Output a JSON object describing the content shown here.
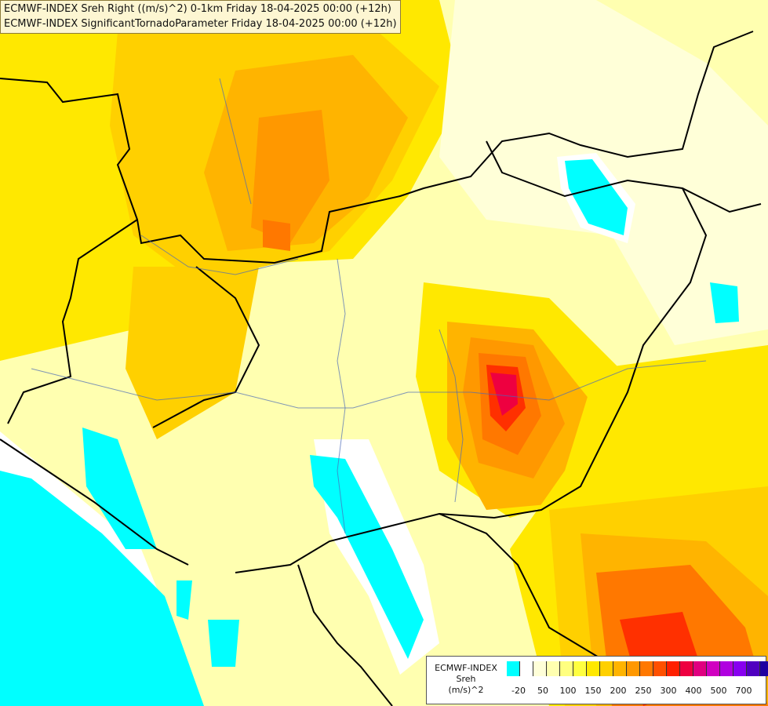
{
  "title_lines": [
    "ECMWF-INDEX Sreh Right ((m/s)^2) 0-1km Friday 18-04-2025 00:00 (+12h)",
    "ECMWF-INDEX SignificantTornadoParameter Friday 18-04-2025 00:00 (+12h)"
  ],
  "legend": {
    "label_lines": [
      "ECMWF-INDEX",
      "Sreh",
      "(m/s)^2"
    ],
    "colors": [
      "#00ffff",
      "#ffffff",
      "#ffffd8",
      "#ffffb0",
      "#ffff80",
      "#ffff40",
      "#ffe800",
      "#ffd000",
      "#ffb400",
      "#ff9800",
      "#ff7800",
      "#ff5000",
      "#ff2000",
      "#ee0040",
      "#e00080",
      "#d000c0",
      "#b000e0",
      "#8800f0",
      "#5000c0",
      "#2000a0",
      "#000080"
    ],
    "ticks": [
      "-20",
      "50",
      "100",
      "150",
      "200",
      "250",
      "300",
      "400",
      "500",
      "700"
    ]
  },
  "fill_colors": {
    "background": "#ffffb0",
    "cyan": "#00ffff",
    "white": "#ffffff",
    "pale": "#ffffd8",
    "yellow": "#ffff40",
    "gold": "#ffe800",
    "orange_light": "#ffd000",
    "orange": "#ffb400",
    "orange_dark": "#ff9800",
    "red_orange": "#ff7800",
    "red": "#ff3000",
    "crimson": "#ee0040",
    "border": "#000000",
    "river": "#4a6ab8"
  }
}
